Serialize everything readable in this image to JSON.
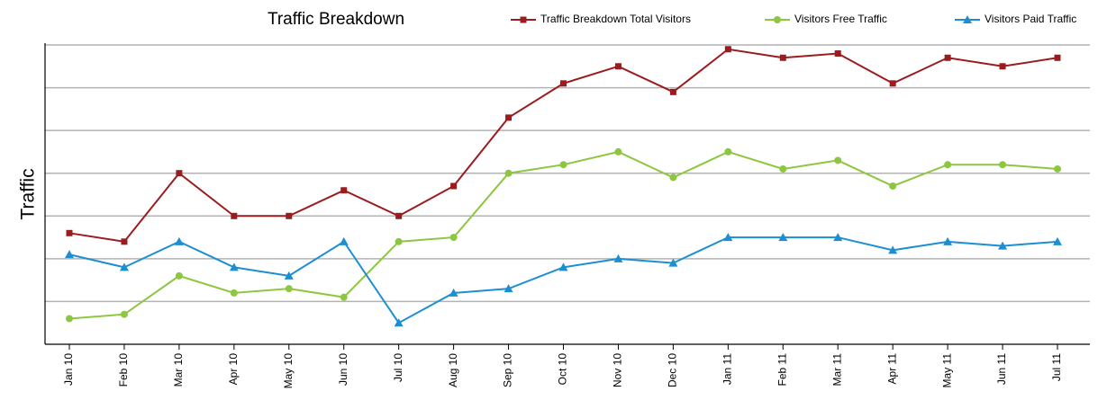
{
  "chart_data": {
    "type": "line",
    "title": "Traffic Breakdown",
    "ylabel": "Traffic",
    "categories": [
      "Jan 10",
      "Feb 10",
      "Mar 10",
      "Apr 10",
      "May 10",
      "Jun 10",
      "Jul 10",
      "Aug 10",
      "Sep 10",
      "Oct 10",
      "Nov 10",
      "Dec 10",
      "Jan 11",
      "Feb 11",
      "Mar 11",
      "Apr 11",
      "May 11",
      "Jun 11",
      "Jul 11"
    ],
    "series": [
      {
        "name": "Traffic Breakdown Total Visitors",
        "color": "#9b1c1f",
        "marker": "square",
        "values": [
          2.6,
          2.4,
          4.0,
          3.0,
          3.0,
          3.6,
          3.0,
          3.7,
          5.3,
          6.1,
          6.5,
          5.9,
          6.9,
          6.7,
          6.8,
          6.1,
          6.7,
          6.5,
          6.7
        ]
      },
      {
        "name": "Visitors Free Traffic",
        "color": "#8dc63f",
        "marker": "circle",
        "values": [
          0.6,
          0.7,
          1.6,
          1.2,
          1.3,
          1.1,
          2.4,
          2.5,
          4.0,
          4.2,
          4.5,
          3.9,
          4.5,
          4.1,
          4.3,
          3.7,
          4.2,
          4.2,
          4.1
        ]
      },
      {
        "name": "Visitors Paid Traffic",
        "color": "#1b8fd1",
        "marker": "triangle",
        "values": [
          2.1,
          1.8,
          2.4,
          1.8,
          1.6,
          2.4,
          0.5,
          1.2,
          1.3,
          1.8,
          2.0,
          1.9,
          2.5,
          2.5,
          2.5,
          2.2,
          2.4,
          2.3,
          2.4
        ]
      }
    ],
    "ylim": [
      0,
      7
    ],
    "yticks": [
      1,
      2,
      3,
      4,
      5,
      6,
      7
    ],
    "grid": true,
    "legend": "top-right"
  }
}
